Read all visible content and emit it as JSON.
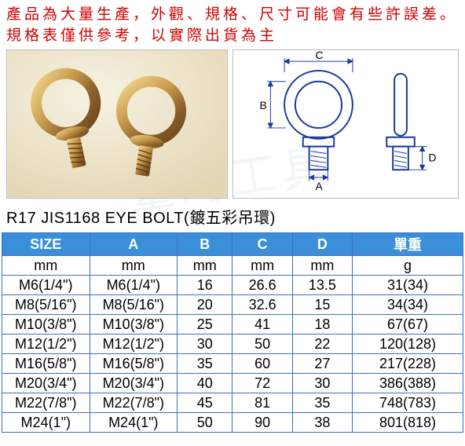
{
  "notice": {
    "line1": "產品為大量生產，外觀、規格、尺寸可能會有些許誤差。",
    "line2": "規格表僅供參考，以實際出貨為主",
    "color": "#d00000",
    "fontsize": 19
  },
  "title": "R17  JIS1168 EYE BOLT(鍍五彩吊環)",
  "diagram_labels": {
    "A": "A",
    "B": "B",
    "C": "C",
    "D": "D"
  },
  "table": {
    "header_bg": "#3b8fd8",
    "header_fg": "#ffffff",
    "border_color": "#3b6fc8",
    "columns": [
      "SIZE",
      "A",
      "B",
      "C",
      "D",
      "單重"
    ],
    "units": [
      "mm",
      "mm",
      "mm",
      "mm",
      "mm",
      "g"
    ],
    "col_widths_pct": [
      19,
      19,
      12,
      13,
      13,
      24
    ],
    "rows": [
      [
        "M6(1/4\")",
        "M6(1/4\")",
        "16",
        "26.6",
        "13.5",
        "31(34)"
      ],
      [
        "M8(5/16\")",
        "M8(5/16\")",
        "20",
        "32.6",
        "15",
        "34(34)"
      ],
      [
        "M10(3/8\")",
        "M10(3/8\")",
        "25",
        "41",
        "18",
        "67(67)"
      ],
      [
        "M12(1/2\")",
        "M12(1/2\")",
        "30",
        "50",
        "22",
        "120(128)"
      ],
      [
        "M16(5/8\")",
        "M16(5/8\")",
        "35",
        "60",
        "27",
        "217(228)"
      ],
      [
        "M20(3/4\")",
        "M20(3/4\")",
        "40",
        "72",
        "30",
        "386(388)"
      ],
      [
        "M22(7/8\")",
        "M22(7/8\")",
        "45",
        "81",
        "35",
        "748(783)"
      ],
      [
        "M24(1\")",
        "M24(1\")",
        "50",
        "90",
        "38",
        "801(818)"
      ]
    ],
    "fontsize": 18
  }
}
